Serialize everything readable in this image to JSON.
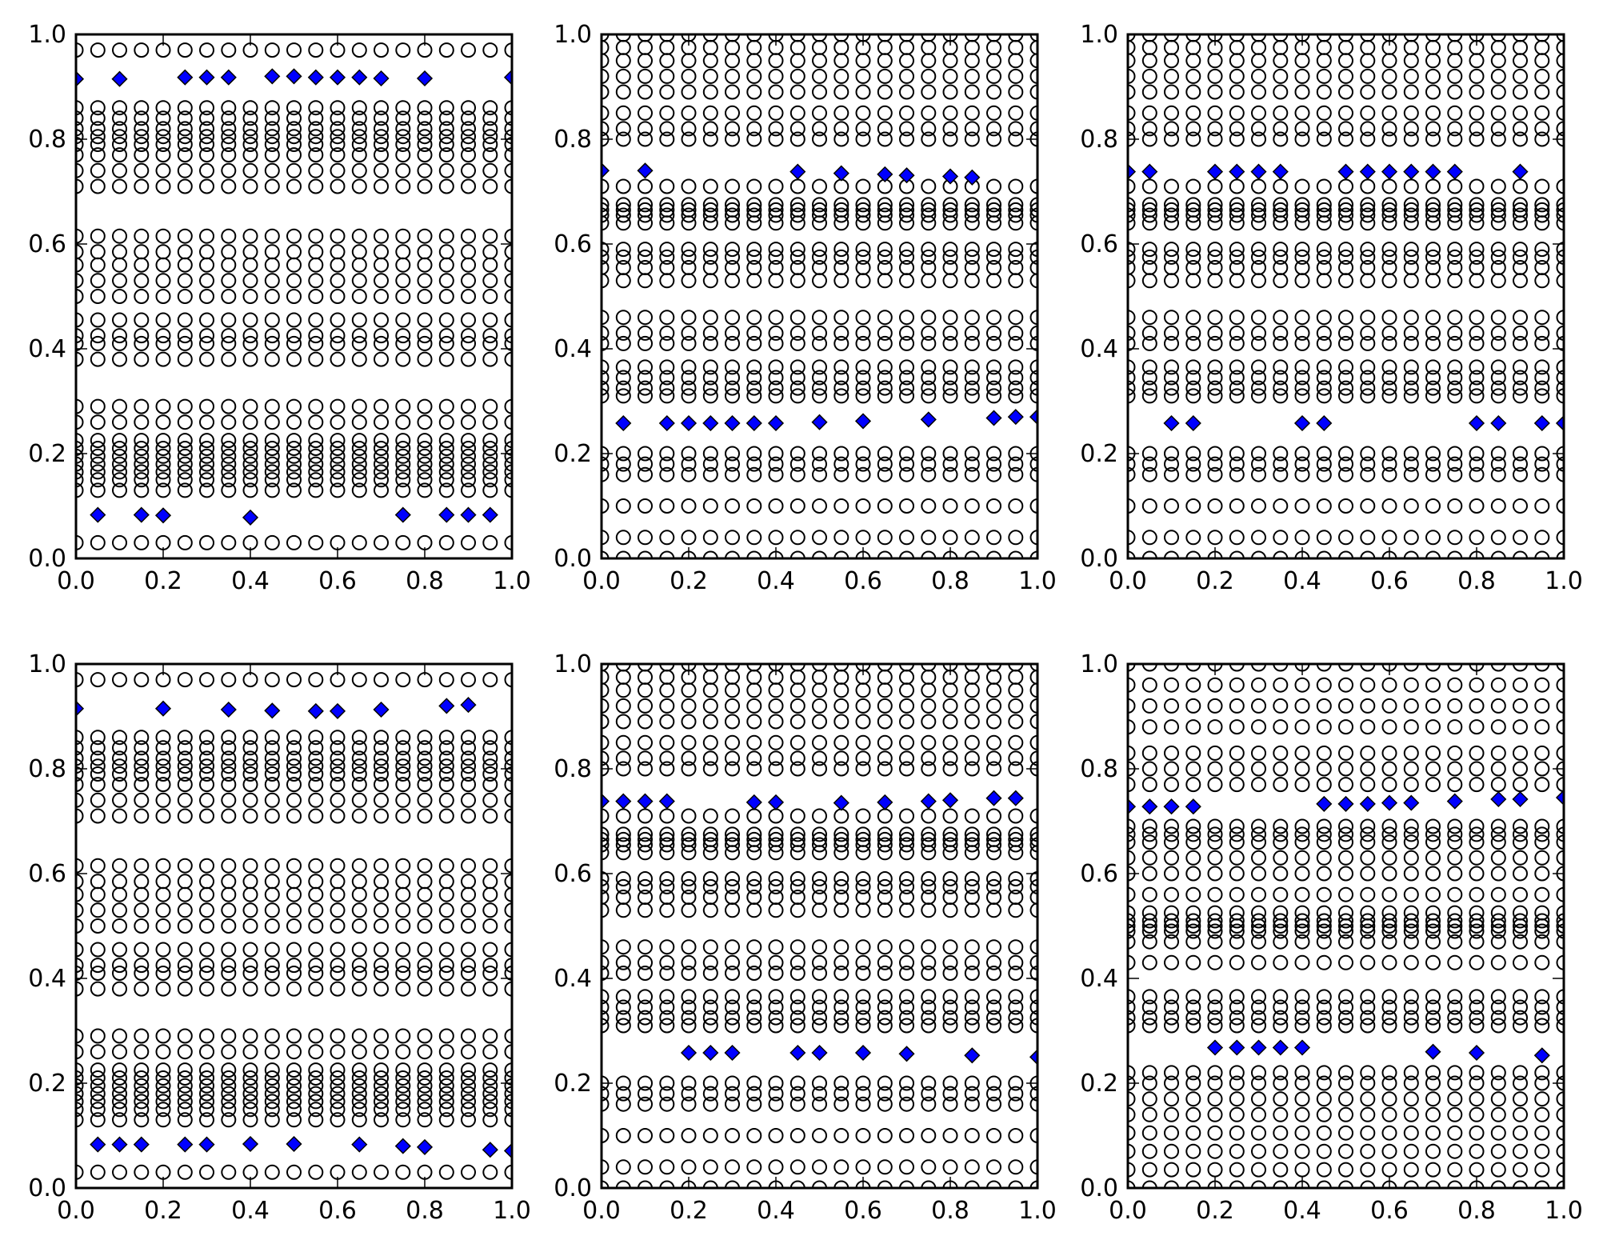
{
  "figure": {
    "background": "#ffffff",
    "layout": "2 rows x 3 columns",
    "marker_open_circle_color": "#000000",
    "marker_diamond_fill": "#0000ff",
    "marker_diamond_edge": "#000000",
    "axis_color": "#000000"
  },
  "chart_data": [
    {
      "type": "scatter",
      "title": "",
      "xlabel": "",
      "ylabel": "",
      "xlim": [
        0,
        1
      ],
      "ylim": [
        0,
        1
      ],
      "x_ticks": [
        "0.0",
        "0.2",
        "0.4",
        "0.6",
        "0.8",
        "1.0"
      ],
      "y_ticks": [
        "0.0",
        "0.2",
        "0.4",
        "0.6",
        "0.8",
        "1.0"
      ],
      "grid": false,
      "x_grid_step": 0.05,
      "series": [
        {
          "marker": "open-circle",
          "color": "#000000",
          "columns_note": "every x from 0.0 to 1.0 step 0.05",
          "y_levels": [
            0.03,
            0.13,
            0.15,
            0.165,
            0.18,
            0.195,
            0.21,
            0.225,
            0.26,
            0.29,
            0.38,
            0.41,
            0.425,
            0.455,
            0.5,
            0.53,
            0.56,
            0.585,
            0.615,
            0.71,
            0.74,
            0.77,
            0.79,
            0.805,
            0.82,
            0.84,
            0.86,
            0.97
          ]
        },
        {
          "marker": "diamond",
          "color": "#0000ff",
          "points": [
            [
              0.0,
              0.915
            ],
            [
              0.1,
              0.915
            ],
            [
              0.25,
              0.918
            ],
            [
              0.3,
              0.918
            ],
            [
              0.35,
              0.918
            ],
            [
              0.45,
              0.92
            ],
            [
              0.5,
              0.92
            ],
            [
              0.55,
              0.918
            ],
            [
              0.6,
              0.918
            ],
            [
              0.65,
              0.918
            ],
            [
              0.7,
              0.916
            ],
            [
              0.8,
              0.916
            ],
            [
              1.0,
              0.918
            ],
            [
              0.05,
              0.083
            ],
            [
              0.15,
              0.083
            ],
            [
              0.2,
              0.082
            ],
            [
              0.4,
              0.078
            ],
            [
              0.75,
              0.083
            ],
            [
              0.85,
              0.083
            ],
            [
              0.9,
              0.083
            ],
            [
              0.95,
              0.083
            ]
          ]
        }
      ]
    },
    {
      "type": "scatter",
      "title": "",
      "xlabel": "",
      "ylabel": "",
      "xlim": [
        0,
        1
      ],
      "ylim": [
        0,
        1
      ],
      "x_ticks": [
        "0.0",
        "0.2",
        "0.4",
        "0.6",
        "0.8",
        "1.0"
      ],
      "y_ticks": [
        "0.0",
        "0.2",
        "0.4",
        "0.6",
        "0.8",
        "1.0"
      ],
      "grid": false,
      "x_grid_step": 0.05,
      "series": [
        {
          "marker": "open-circle",
          "color": "#000000",
          "columns_note": "every x from 0.0 to 1.0 step 0.05",
          "y_levels": [
            0.0,
            0.04,
            0.1,
            0.16,
            0.18,
            0.2,
            0.31,
            0.325,
            0.345,
            0.365,
            0.41,
            0.43,
            0.46,
            0.53,
            0.555,
            0.575,
            0.59,
            0.64,
            0.655,
            0.665,
            0.675,
            0.71,
            0.8,
            0.82,
            0.85,
            0.89,
            0.92,
            0.95,
            0.975,
            1.0
          ]
        },
        {
          "marker": "diamond",
          "color": "#0000ff",
          "points": [
            [
              0.0,
              0.74
            ],
            [
              0.1,
              0.74
            ],
            [
              0.45,
              0.738
            ],
            [
              0.55,
              0.735
            ],
            [
              0.65,
              0.733
            ],
            [
              0.7,
              0.731
            ],
            [
              0.8,
              0.729
            ],
            [
              0.85,
              0.727
            ],
            [
              0.05,
              0.258
            ],
            [
              0.15,
              0.258
            ],
            [
              0.2,
              0.258
            ],
            [
              0.25,
              0.258
            ],
            [
              0.3,
              0.258
            ],
            [
              0.35,
              0.258
            ],
            [
              0.4,
              0.258
            ],
            [
              0.5,
              0.26
            ],
            [
              0.6,
              0.262
            ],
            [
              0.75,
              0.265
            ],
            [
              0.9,
              0.268
            ],
            [
              0.95,
              0.27
            ],
            [
              1.0,
              0.27
            ]
          ]
        }
      ]
    },
    {
      "type": "scatter",
      "title": "",
      "xlabel": "",
      "ylabel": "",
      "xlim": [
        0,
        1
      ],
      "ylim": [
        0,
        1
      ],
      "x_ticks": [
        "0.0",
        "0.2",
        "0.4",
        "0.6",
        "0.8",
        "1.0"
      ],
      "y_ticks": [
        "0.0",
        "0.2",
        "0.4",
        "0.6",
        "0.8",
        "1.0"
      ],
      "grid": false,
      "x_grid_step": 0.05,
      "series": [
        {
          "marker": "open-circle",
          "color": "#000000",
          "columns_note": "every x from 0.0 to 1.0 step 0.05",
          "y_levels": [
            0.0,
            0.04,
            0.1,
            0.16,
            0.18,
            0.2,
            0.31,
            0.325,
            0.345,
            0.365,
            0.41,
            0.43,
            0.46,
            0.53,
            0.555,
            0.575,
            0.59,
            0.64,
            0.655,
            0.665,
            0.675,
            0.71,
            0.8,
            0.82,
            0.85,
            0.89,
            0.92,
            0.95,
            0.975,
            1.0
          ]
        },
        {
          "marker": "diamond",
          "color": "#0000ff",
          "points": [
            [
              0.0,
              0.738
            ],
            [
              0.05,
              0.738
            ],
            [
              0.2,
              0.738
            ],
            [
              0.25,
              0.738
            ],
            [
              0.3,
              0.738
            ],
            [
              0.35,
              0.738
            ],
            [
              0.5,
              0.738
            ],
            [
              0.55,
              0.738
            ],
            [
              0.6,
              0.738
            ],
            [
              0.65,
              0.738
            ],
            [
              0.7,
              0.738
            ],
            [
              0.75,
              0.738
            ],
            [
              0.9,
              0.738
            ],
            [
              0.1,
              0.258
            ],
            [
              0.15,
              0.258
            ],
            [
              0.4,
              0.258
            ],
            [
              0.45,
              0.258
            ],
            [
              0.8,
              0.258
            ],
            [
              0.85,
              0.258
            ],
            [
              0.95,
              0.258
            ],
            [
              1.0,
              0.258
            ]
          ]
        }
      ]
    },
    {
      "type": "scatter",
      "title": "",
      "xlabel": "",
      "ylabel": "",
      "xlim": [
        0,
        1
      ],
      "ylim": [
        0,
        1
      ],
      "x_ticks": [
        "0.0",
        "0.2",
        "0.4",
        "0.6",
        "0.8",
        "1.0"
      ],
      "y_ticks": [
        "0.0",
        "0.2",
        "0.4",
        "0.6",
        "0.8",
        "1.0"
      ],
      "grid": false,
      "x_grid_step": 0.05,
      "series": [
        {
          "marker": "open-circle",
          "color": "#000000",
          "columns_note": "every x from 0.0 to 1.0 step 0.05",
          "y_levels": [
            0.03,
            0.13,
            0.15,
            0.165,
            0.18,
            0.195,
            0.21,
            0.225,
            0.26,
            0.29,
            0.38,
            0.41,
            0.425,
            0.455,
            0.5,
            0.53,
            0.56,
            0.585,
            0.615,
            0.71,
            0.74,
            0.77,
            0.79,
            0.805,
            0.82,
            0.84,
            0.86,
            0.97
          ]
        },
        {
          "marker": "diamond",
          "color": "#0000ff",
          "points": [
            [
              0.0,
              0.915
            ],
            [
              0.2,
              0.915
            ],
            [
              0.35,
              0.913
            ],
            [
              0.45,
              0.911
            ],
            [
              0.55,
              0.91
            ],
            [
              0.6,
              0.91
            ],
            [
              0.7,
              0.913
            ],
            [
              0.85,
              0.92
            ],
            [
              0.9,
              0.922
            ],
            [
              0.05,
              0.083
            ],
            [
              0.1,
              0.083
            ],
            [
              0.15,
              0.083
            ],
            [
              0.25,
              0.083
            ],
            [
              0.3,
              0.083
            ],
            [
              0.4,
              0.084
            ],
            [
              0.5,
              0.084
            ],
            [
              0.65,
              0.083
            ],
            [
              0.75,
              0.08
            ],
            [
              0.8,
              0.078
            ],
            [
              0.95,
              0.073
            ],
            [
              1.0,
              0.071
            ]
          ]
        }
      ]
    },
    {
      "type": "scatter",
      "title": "",
      "xlabel": "",
      "ylabel": "",
      "xlim": [
        0,
        1
      ],
      "ylim": [
        0,
        1
      ],
      "x_ticks": [
        "0.0",
        "0.2",
        "0.4",
        "0.6",
        "0.8",
        "1.0"
      ],
      "y_ticks": [
        "0.0",
        "0.2",
        "0.4",
        "0.6",
        "0.8",
        "1.0"
      ],
      "grid": false,
      "x_grid_step": 0.05,
      "series": [
        {
          "marker": "open-circle",
          "color": "#000000",
          "columns_note": "every x from 0.0 to 1.0 step 0.05",
          "y_levels": [
            0.0,
            0.04,
            0.1,
            0.16,
            0.18,
            0.2,
            0.31,
            0.325,
            0.345,
            0.365,
            0.41,
            0.43,
            0.46,
            0.53,
            0.555,
            0.575,
            0.59,
            0.64,
            0.655,
            0.665,
            0.675,
            0.71,
            0.8,
            0.82,
            0.85,
            0.89,
            0.92,
            0.95,
            0.975,
            1.0
          ]
        },
        {
          "marker": "diamond",
          "color": "#0000ff",
          "points": [
            [
              0.0,
              0.738
            ],
            [
              0.05,
              0.738
            ],
            [
              0.1,
              0.738
            ],
            [
              0.15,
              0.738
            ],
            [
              0.35,
              0.736
            ],
            [
              0.4,
              0.736
            ],
            [
              0.55,
              0.735
            ],
            [
              0.65,
              0.736
            ],
            [
              0.75,
              0.738
            ],
            [
              0.8,
              0.74
            ],
            [
              0.9,
              0.744
            ],
            [
              0.95,
              0.744
            ],
            [
              0.2,
              0.258
            ],
            [
              0.25,
              0.258
            ],
            [
              0.3,
              0.258
            ],
            [
              0.45,
              0.258
            ],
            [
              0.5,
              0.258
            ],
            [
              0.6,
              0.258
            ],
            [
              0.7,
              0.256
            ],
            [
              0.85,
              0.253
            ],
            [
              1.0,
              0.25
            ]
          ]
        }
      ]
    },
    {
      "type": "scatter",
      "title": "",
      "xlabel": "",
      "ylabel": "",
      "xlim": [
        0,
        1
      ],
      "ylim": [
        0,
        1
      ],
      "x_ticks": [
        "0.0",
        "0.2",
        "0.4",
        "0.6",
        "0.8",
        "1.0"
      ],
      "y_ticks": [
        "0.0",
        "0.2",
        "0.4",
        "0.6",
        "0.8",
        "1.0"
      ],
      "grid": false,
      "x_grid_step": 0.05,
      "series": [
        {
          "marker": "open-circle",
          "color": "#000000",
          "columns_note": "every x from 0.0 to 1.0 step 0.05",
          "y_levels": [
            0.0,
            0.035,
            0.07,
            0.105,
            0.14,
            0.17,
            0.2,
            0.22,
            0.31,
            0.325,
            0.345,
            0.365,
            0.43,
            0.47,
            0.49,
            0.5,
            0.51,
            0.525,
            0.56,
            0.6,
            0.63,
            0.66,
            0.675,
            0.69,
            0.77,
            0.8,
            0.83,
            0.88,
            0.92,
            0.96,
            1.0
          ]
        },
        {
          "marker": "diamond",
          "color": "#0000ff",
          "points": [
            [
              0.0,
              0.728
            ],
            [
              0.05,
              0.728
            ],
            [
              0.1,
              0.728
            ],
            [
              0.15,
              0.728
            ],
            [
              0.45,
              0.733
            ],
            [
              0.5,
              0.733
            ],
            [
              0.55,
              0.733
            ],
            [
              0.6,
              0.735
            ],
            [
              0.65,
              0.735
            ],
            [
              0.75,
              0.738
            ],
            [
              0.85,
              0.742
            ],
            [
              0.9,
              0.742
            ],
            [
              1.0,
              0.745
            ],
            [
              0.2,
              0.268
            ],
            [
              0.25,
              0.268
            ],
            [
              0.3,
              0.268
            ],
            [
              0.35,
              0.268
            ],
            [
              0.4,
              0.268
            ],
            [
              0.7,
              0.26
            ],
            [
              0.8,
              0.258
            ],
            [
              0.95,
              0.253
            ]
          ]
        }
      ]
    }
  ]
}
